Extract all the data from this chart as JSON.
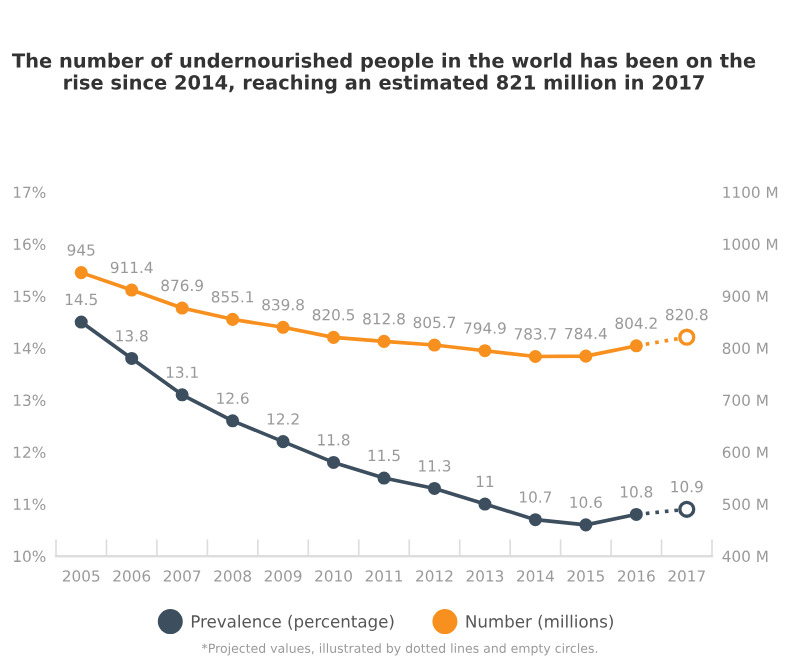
{
  "chart_data": {
    "type": "line",
    "title": "The number of undernourished people in the world has been on the rise since 2014, reaching an estimated 821 million in 2017",
    "categories": [
      "2005",
      "2006",
      "2007",
      "2008",
      "2009",
      "2010",
      "2011",
      "2012",
      "2013",
      "2014",
      "2015",
      "2016",
      "2017"
    ],
    "series": [
      {
        "name": "Prevalence (percentage)",
        "color": "#3d4f5f",
        "values": [
          14.5,
          13.8,
          13.1,
          12.6,
          12.2,
          11.8,
          11.5,
          11.3,
          11,
          10.7,
          10.6,
          10.8,
          null
        ],
        "value_labels": [
          "14.5",
          "13.8",
          "13.1",
          "12.6",
          "12.2",
          "11.8",
          "11.5",
          "11.3",
          "11",
          "10.7",
          "10.6",
          "10.8",
          null
        ]
      },
      {
        "name": "Number (millions)",
        "color": "#f7901e",
        "axis": "y2",
        "values": [
          945,
          911.4,
          876.9,
          855.1,
          839.8,
          820.5,
          812.8,
          805.7,
          794.9,
          783.7,
          784.4,
          804.2,
          null
        ],
        "value_labels": [
          "945",
          "911.4",
          "876.9",
          "855.1",
          "839.8",
          "820.5",
          "812.8",
          "805.7",
          "794.9",
          "783.7",
          "784.4",
          "804.2",
          null
        ]
      },
      {
        "color": "#3d4f5f",
        "line_style": "dotted",
        "values": [
          null,
          null,
          null,
          null,
          null,
          null,
          null,
          null,
          null,
          null,
          null,
          10.8,
          10.9
        ],
        "value_labels": [
          null,
          null,
          null,
          null,
          null,
          null,
          null,
          null,
          null,
          null,
          null,
          null,
          "10.9"
        ]
      },
      {
        "color": "#f7901e",
        "axis": "y2",
        "line_style": "dotted",
        "values": [
          null,
          null,
          null,
          null,
          null,
          null,
          null,
          null,
          null,
          null,
          null,
          804.2,
          820.8
        ],
        "value_labels": [
          null,
          null,
          null,
          null,
          null,
          null,
          null,
          null,
          null,
          null,
          null,
          null,
          "820.8"
        ]
      }
    ],
    "ylim": [
      10,
      17
    ],
    "yticks": [
      {
        "value": 10,
        "label": "10%"
      },
      {
        "value": 11,
        "label": "11%"
      },
      {
        "value": 12,
        "label": "12%"
      },
      {
        "value": 13,
        "label": "13%"
      },
      {
        "value": 14,
        "label": "14%"
      },
      {
        "value": 15,
        "label": "15%"
      },
      {
        "value": 16,
        "label": "16%"
      },
      {
        "value": 17,
        "label": "17%"
      }
    ],
    "y2lim": [
      400,
      1100
    ],
    "y2ticks": [
      {
        "value": 400,
        "label": "400 M"
      },
      {
        "value": 500,
        "label": "500 M"
      },
      {
        "value": 600,
        "label": "600 M"
      },
      {
        "value": 700,
        "label": "700 M"
      },
      {
        "value": 800,
        "label": "800 M"
      },
      {
        "value": 900,
        "label": "900 M"
      },
      {
        "value": 1000,
        "label": "1000 M"
      },
      {
        "value": 1100,
        "label": "1100 M"
      }
    ],
    "marker": "circle",
    "line_style": "solid",
    "grid": false,
    "legend": "bottom",
    "annotations": [
      "*Projected values, illustrated by dotted lines and empty circles."
    ]
  }
}
